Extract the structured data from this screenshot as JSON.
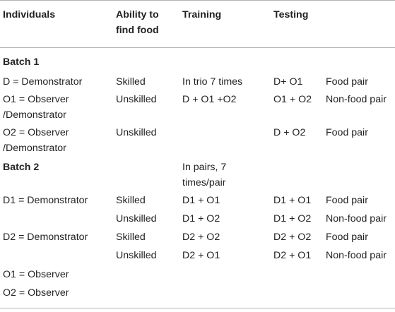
{
  "headers": {
    "individuals": "Individuals",
    "ability_line1": "Ability to",
    "ability_line2": "find food",
    "training": "Training",
    "testing": "Testing"
  },
  "batch1": {
    "label": "Batch 1",
    "rows": [
      {
        "individual": "D = Demonstrator",
        "ability": "Skilled",
        "training": "In trio 7 times",
        "testing": "D+ O1",
        "pair": "Food pair"
      },
      {
        "individual_line1": "O1 = Observer",
        "individual_line2": "/Demonstrator",
        "ability": "Unskilled",
        "training": "D + O1 +O2",
        "testing": "O1 + O2",
        "pair": "Non-food pair"
      },
      {
        "individual_line1": "O2 = Observer",
        "individual_line2": "/Demonstrator",
        "ability": "Unskilled",
        "testing": "D + O2",
        "pair": "Food pair"
      }
    ]
  },
  "batch2": {
    "label": "Batch 2",
    "training_line1": "In pairs, 7",
    "training_line2": "times/pair",
    "rows": [
      {
        "individual": "D1 = Demonstrator",
        "ability": "Skilled",
        "training": "D1 + O1",
        "testing": "D1 + O1",
        "pair": "Food pair"
      },
      {
        "ability": "Unskilled",
        "training": "D1 + O2",
        "testing": "D1 + O2",
        "pair": "Non-food pair"
      },
      {
        "individual": "D2 = Demonstrator",
        "ability": "Skilled",
        "training": "D2 + O2",
        "testing": "D2 + O2",
        "pair": "Food pair"
      },
      {
        "ability": "Unskilled",
        "training": "D2 + O1",
        "testing": "D2 + O1",
        "pair": "Non-food pair"
      },
      {
        "individual": "O1 = Observer"
      },
      {
        "individual": "O2 = Observer"
      }
    ]
  }
}
